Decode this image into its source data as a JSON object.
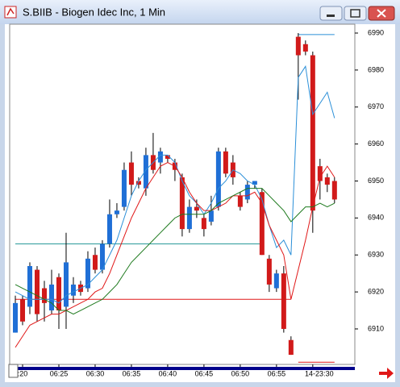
{
  "window": {
    "title": "S.BIIB - Biogen Idec Inc, 1 Min"
  },
  "chart_data": {
    "type": "candlestick",
    "up_color": "#1f6fd6",
    "down_color": "#d11a1a",
    "x": [
      0,
      1,
      2,
      3,
      4,
      5,
      6,
      7,
      8,
      9,
      10,
      11,
      12,
      13,
      14,
      15,
      16,
      17,
      18,
      19,
      20,
      21,
      22,
      23,
      24,
      25,
      26,
      27,
      28,
      29,
      30,
      31,
      32,
      33,
      34,
      35,
      36,
      37,
      38,
      39,
      40,
      41,
      42,
      43,
      44
    ],
    "open": [
      6909,
      6918,
      6916,
      6926,
      6921,
      6915,
      6924,
      6916,
      6919,
      6922,
      6921,
      6930,
      6926,
      6933,
      6941,
      6943,
      6955,
      6950,
      6948,
      6957,
      6955,
      6957,
      6955,
      6951,
      6937,
      6943,
      6940,
      6939,
      6943,
      6958,
      6955,
      6946,
      6945,
      6949,
      6947,
      6929,
      6921,
      6925,
      6907,
      6989,
      6987,
      6984,
      6954,
      6951,
      6950
    ],
    "high": [
      6919,
      6919,
      6928,
      6927,
      6923,
      6926,
      6925,
      6936,
      6924,
      6923,
      6931,
      6932,
      6934,
      6945,
      6944,
      6955,
      6958,
      6951,
      6959,
      6963,
      6959,
      6957,
      6956,
      6952,
      6945,
      6945,
      6941,
      6946,
      6959,
      6959,
      6957,
      6947,
      6950,
      6950,
      6948,
      6930,
      6926,
      6927,
      6908,
      6990,
      6988,
      6985,
      6956,
      6952,
      6951
    ],
    "low": [
      6909,
      6911,
      6914,
      6912,
      6912,
      6914,
      6910,
      6910,
      6917,
      6919,
      6920,
      6925,
      6925,
      6932,
      6940,
      6942,
      6946,
      6948,
      6946,
      6952,
      6952,
      6955,
      6950,
      6935,
      6936,
      6940,
      6935,
      6938,
      6942,
      6951,
      6949,
      6942,
      6944,
      6948,
      6930,
      6920,
      6920,
      6909,
      6903,
      6972,
      6984,
      6936,
      6945,
      6947,
      6944
    ],
    "close": [
      6917,
      6912,
      6927,
      6914,
      6917,
      6922,
      6915,
      6928,
      6922,
      6920,
      6929,
      6926,
      6933,
      6941,
      6942,
      6953,
      6949,
      6949,
      6957,
      6953,
      6958,
      6956,
      6953,
      6937,
      6943,
      6942,
      6937,
      6942,
      6958,
      6952,
      6951,
      6943,
      6949,
      6950,
      6930,
      6922,
      6925,
      6910,
      6903,
      6984,
      6985,
      6942,
      6950,
      6949,
      6945
    ],
    "series": [
      {
        "color": "#2b8fd8",
        "values": [
          6920,
          6919,
          6918,
          6918,
          6918,
          6918,
          6917,
          6919,
          6920,
          6921,
          6922,
          6924,
          6926,
          6930,
          6934,
          6940,
          6946,
          6950,
          6953,
          6955,
          6957,
          6957,
          6955,
          6950,
          6946,
          6944,
          6941,
          6944,
          6948,
          6950,
          6953,
          6952,
          6950,
          6949,
          6945,
          6938,
          6932,
          6934,
          6930,
          6978,
          6981,
          6968,
          6971,
          6974,
          6967
        ]
      },
      {
        "color": "#e01818",
        "values": [
          6905,
          6908,
          6911,
          6912,
          6913,
          6914,
          6914,
          6915,
          6916,
          6917,
          6918,
          6920,
          6921,
          6925,
          6930,
          6935,
          6940,
          6944,
          6948,
          6951,
          6954,
          6955,
          6954,
          6951,
          6947,
          6944,
          6942,
          6942,
          6943,
          6944,
          6946,
          6946,
          6946,
          6947,
          6944,
          6938,
          6934,
          6930,
          6918,
          6926,
          6934,
          6943,
          6951,
          6954,
          6951
        ]
      },
      {
        "color": "#1e7a1e",
        "values": [
          6922,
          6921,
          6920,
          6919,
          6918,
          6917,
          6915,
          6915,
          6914,
          6915,
          6916,
          6917,
          6918,
          6920,
          6922,
          6925,
          6928,
          6930,
          6932,
          6934,
          6936,
          6938,
          6940,
          6941,
          6941,
          6941,
          6941,
          6942,
          6944,
          6945,
          6946,
          6947,
          6948,
          6948,
          6948,
          6946,
          6944,
          6942,
          6939,
          6941,
          6943,
          6943,
          6944,
          6943,
          6944
        ]
      }
    ],
    "levels": [
      {
        "value": 6933,
        "color": "#2a9a9a",
        "from": 0,
        "to": 34
      },
      {
        "value": 6918,
        "color": "#e01818",
        "from": 0,
        "to": 38
      },
      {
        "value": 6989.6,
        "color": "#2b8fd8",
        "from": 39,
        "to": 44
      },
      {
        "value": 6901,
        "color": "#e01818",
        "from": 39,
        "to": 44
      }
    ],
    "xlim": [
      -0.78,
      46.8
    ],
    "xticks": [
      {
        "value": 1,
        "label": ":20"
      },
      {
        "value": 6,
        "label": "06:25"
      },
      {
        "value": 11,
        "label": "06:30"
      },
      {
        "value": 16,
        "label": "06:35"
      },
      {
        "value": 21,
        "label": "06:40"
      },
      {
        "value": 26,
        "label": "06:45"
      },
      {
        "value": 31,
        "label": "06:50"
      },
      {
        "value": 36,
        "label": "06:55"
      },
      {
        "value": 41,
        "label": "14-23:30"
      }
    ],
    "ylim": [
      6900.4,
      6992.4
    ],
    "yticks": [
      6910,
      6920,
      6930,
      6940,
      6950,
      6960,
      6970,
      6980,
      6990
    ]
  }
}
